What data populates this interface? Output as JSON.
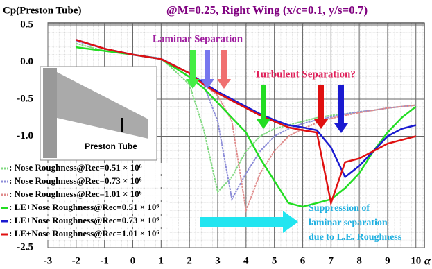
{
  "chart_data": {
    "type": "line",
    "title": "@M=0.25, Right Wing (x/c=0.1, y/s=0.7)",
    "y_label": "Cp(Preston Tube)",
    "x_label": "α",
    "annotations": [
      "Laminar Separation",
      "Turbulent Separation?",
      "Preston Tube"
    ],
    "note_lines": [
      "Suppression of",
      "laminar separation",
      "due to L.E. Roughness"
    ],
    "x": [
      -2,
      -1,
      0,
      1,
      2,
      2.5,
      3,
      3.5,
      4,
      4.5,
      5,
      5.5,
      6,
      6.5,
      7,
      7.5,
      8,
      8.5,
      9,
      9.5,
      10
    ],
    "xlim": [
      -3,
      10.3
    ],
    "ylim": [
      -2.5,
      0.5
    ],
    "xticks": [
      -3,
      -2,
      -1,
      0,
      1,
      2,
      3,
      4,
      5,
      6,
      7,
      8,
      9,
      10
    ],
    "yticks": [
      {
        "value": 0.5,
        "label": "0.5"
      },
      {
        "value": 0,
        "label": "0.0"
      },
      {
        "value": -0.5,
        "label": "-0.5"
      },
      {
        "value": -1,
        "label": "-1.0"
      },
      {
        "value": -2.5,
        "label": "-2.5"
      }
    ],
    "grid": true,
    "series": [
      {
        "name": ": Nose Roughness@Rec=0.51 × 10⁶",
        "color": "#7fd97f",
        "style": "dotted",
        "values": [
          0.25,
          0.15,
          0.1,
          0.05,
          -0.3,
          -0.9,
          -1.75,
          -1.55,
          -1.2,
          -1.0,
          -0.9,
          -0.85,
          -0.8,
          -0.75,
          -0.72,
          -0.7,
          -0.67,
          -0.65,
          -0.62,
          -0.6,
          -0.58
        ]
      },
      {
        "name": ": Nose Roughness@Rec=0.73 × 10⁶",
        "color": "#8c8cd8",
        "style": "dotted",
        "values": [
          0.28,
          0.18,
          0.1,
          0.05,
          -0.15,
          -0.3,
          -0.8,
          -1.85,
          -1.5,
          -1.2,
          -1.0,
          -0.9,
          -0.83,
          -0.78,
          -0.74,
          -0.7,
          -0.67,
          -0.65,
          -0.62,
          -0.6,
          -0.58
        ]
      },
      {
        "name": ": Nose Roughness@Rec=1.01 × 10⁶",
        "color": "#e08c8c",
        "style": "dotted",
        "values": [
          0.3,
          0.18,
          0.1,
          0.04,
          -0.15,
          -0.3,
          -0.45,
          -0.8,
          -2.0,
          -1.5,
          -1.2,
          -1.0,
          -0.9,
          -0.82,
          -0.76,
          -0.72,
          -0.68,
          -0.65,
          -0.62,
          -0.6,
          -0.58
        ]
      },
      {
        "name": ": LE+Nose Roughness@Rec=0.51 × 10⁶",
        "color": "#22dd22",
        "style": "solid",
        "values": [
          0.2,
          0.15,
          0.1,
          0.04,
          -0.2,
          -0.35,
          -0.55,
          -0.75,
          -0.95,
          -1.3,
          -1.6,
          -1.9,
          -1.95,
          -1.9,
          -1.85,
          -1.7,
          -1.5,
          -1.2,
          -0.95,
          -0.75,
          -0.6
        ]
      },
      {
        "name": ": LE+Nose Roughness@Rec=0.73 × 10⁶",
        "color": "#1a1ad0",
        "style": "solid",
        "values": [
          0.3,
          0.18,
          0.1,
          0.04,
          -0.15,
          -0.28,
          -0.4,
          -0.5,
          -0.6,
          -0.7,
          -0.78,
          -0.85,
          -0.88,
          -0.92,
          -1.15,
          -1.55,
          -1.4,
          -1.2,
          -1.0,
          -0.9,
          -0.85
        ]
      },
      {
        "name": ": LE+Nose Roughness@Rec=1.01 × 10⁶",
        "color": "#e01010",
        "style": "solid",
        "values": [
          0.3,
          0.18,
          0.1,
          0.04,
          -0.15,
          -0.3,
          -0.42,
          -0.52,
          -0.62,
          -0.72,
          -0.8,
          -0.88,
          -0.92,
          -0.95,
          -1.9,
          -1.35,
          -1.3,
          -1.2,
          -1.1,
          -1.05,
          -1.0
        ]
      }
    ]
  }
}
